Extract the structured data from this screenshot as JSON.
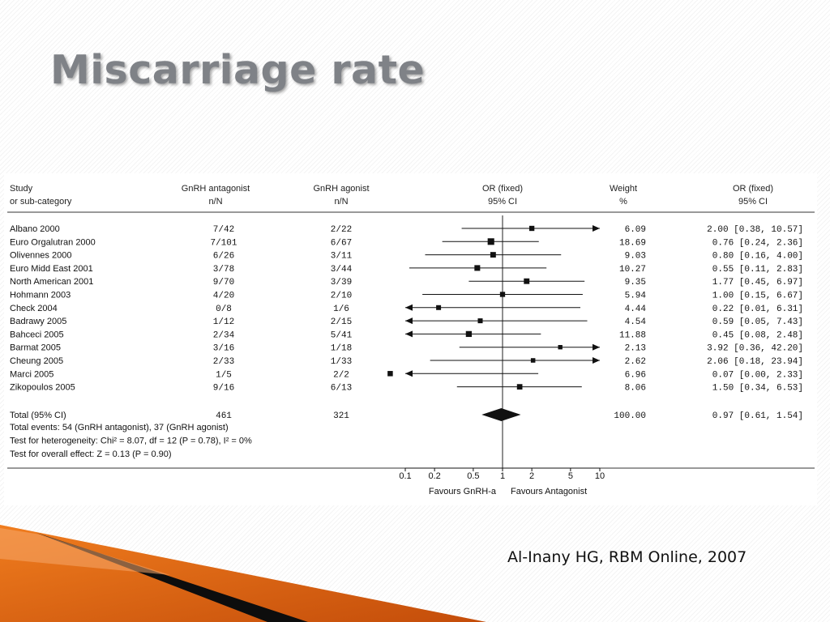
{
  "title": "Miscarriage rate",
  "citation": "Al-Inany  HG, RBM Online, 2007",
  "chart_data": {
    "type": "forest",
    "headers": {
      "study": [
        "Study",
        "or sub-category"
      ],
      "antagonist": [
        "GnRH antagonist",
        "n/N"
      ],
      "agonist": [
        "GnRH agonist",
        "n/N"
      ],
      "or_plot": [
        "OR (fixed)",
        "95% CI"
      ],
      "weight": [
        "Weight",
        "%"
      ],
      "or_text": [
        "OR (fixed)",
        "95% CI"
      ]
    },
    "studies": [
      {
        "name": "Albano 2000",
        "antagonist": "7/42",
        "agonist": "2/22",
        "weight": "6.09",
        "or": 2.0,
        "lo": 0.38,
        "hi": 10.57,
        "or_text": "2.00 [0.38, 10.57]"
      },
      {
        "name": "Euro Orgalutran 2000",
        "antagonist": "7/101",
        "agonist": "6/67",
        "weight": "18.69",
        "or": 0.76,
        "lo": 0.24,
        "hi": 2.36,
        "or_text": "0.76 [0.24, 2.36]"
      },
      {
        "name": "Olivennes 2000",
        "antagonist": "6/26",
        "agonist": "3/11",
        "weight": "9.03",
        "or": 0.8,
        "lo": 0.16,
        "hi": 4.0,
        "or_text": "0.80 [0.16, 4.00]"
      },
      {
        "name": "Euro Midd East 2001",
        "antagonist": "3/78",
        "agonist": "3/44",
        "weight": "10.27",
        "or": 0.55,
        "lo": 0.11,
        "hi": 2.83,
        "or_text": "0.55 [0.11, 2.83]"
      },
      {
        "name": "North American 2001",
        "antagonist": "9/70",
        "agonist": "3/39",
        "weight": "9.35",
        "or": 1.77,
        "lo": 0.45,
        "hi": 6.97,
        "or_text": "1.77 [0.45, 6.97]"
      },
      {
        "name": "Hohmann 2003",
        "antagonist": "4/20",
        "agonist": "2/10",
        "weight": "5.94",
        "or": 1.0,
        "lo": 0.15,
        "hi": 6.67,
        "or_text": "1.00 [0.15, 6.67]"
      },
      {
        "name": "Check 2004",
        "antagonist": "0/8",
        "agonist": "1/6",
        "weight": "4.44",
        "or": 0.22,
        "lo": 0.01,
        "hi": 6.31,
        "or_text": "0.22 [0.01, 6.31]"
      },
      {
        "name": "Badrawy 2005",
        "antagonist": "1/12",
        "agonist": "2/15",
        "weight": "4.54",
        "or": 0.59,
        "lo": 0.05,
        "hi": 7.43,
        "or_text": "0.59 [0.05, 7.43]"
      },
      {
        "name": "Bahceci 2005",
        "antagonist": "2/34",
        "agonist": "5/41",
        "weight": "11.88",
        "or": 0.45,
        "lo": 0.08,
        "hi": 2.48,
        "or_text": "0.45 [0.08, 2.48]"
      },
      {
        "name": "Barmat 2005",
        "antagonist": "3/16",
        "agonist": "1/18",
        "weight": "2.13",
        "or": 3.92,
        "lo": 0.36,
        "hi": 42.2,
        "or_text": "3.92 [0.36, 42.20]"
      },
      {
        "name": "Cheung 2005",
        "antagonist": "2/33",
        "agonist": "1/33",
        "weight": "2.62",
        "or": 2.06,
        "lo": 0.18,
        "hi": 23.94,
        "or_text": "2.06 [0.18, 23.94]"
      },
      {
        "name": "Marci 2005",
        "antagonist": "1/5",
        "agonist": "2/2",
        "weight": "6.96",
        "or": 0.07,
        "lo": 0.0,
        "hi": 2.33,
        "or_text": "0.07 [0.00, 2.33]"
      },
      {
        "name": "Zikopoulos 2005",
        "antagonist": "9/16",
        "agonist": "6/13",
        "weight": "8.06",
        "or": 1.5,
        "lo": 0.34,
        "hi": 6.53,
        "or_text": "1.50 [0.34, 6.53]"
      }
    ],
    "total": {
      "name": "Total (95% CI)",
      "antagonist": "461",
      "agonist": "321",
      "weight": "100.00",
      "or": 0.97,
      "lo": 0.61,
      "hi": 1.54,
      "or_text": "0.97 [0.61, 1.54]"
    },
    "notes": [
      "Total events: 54 (GnRH antagonist), 37 (GnRH agonist)",
      "Test for heterogeneity: Chi² = 8.07, df = 12 (P = 0.78), I² = 0%",
      "Test for overall effect: Z = 0.13 (P = 0.90)"
    ],
    "x_scale": "log",
    "xlim": [
      0.1,
      10
    ],
    "x_ticks": [
      0.1,
      0.2,
      0.5,
      1,
      2,
      5,
      10
    ],
    "x_tick_labels": [
      "0.1",
      "0.2",
      "0.5",
      "1",
      "2",
      "5",
      "10"
    ],
    "favours_left": "Favours GnRH-a",
    "favours_right": "Favours Antagonist"
  }
}
